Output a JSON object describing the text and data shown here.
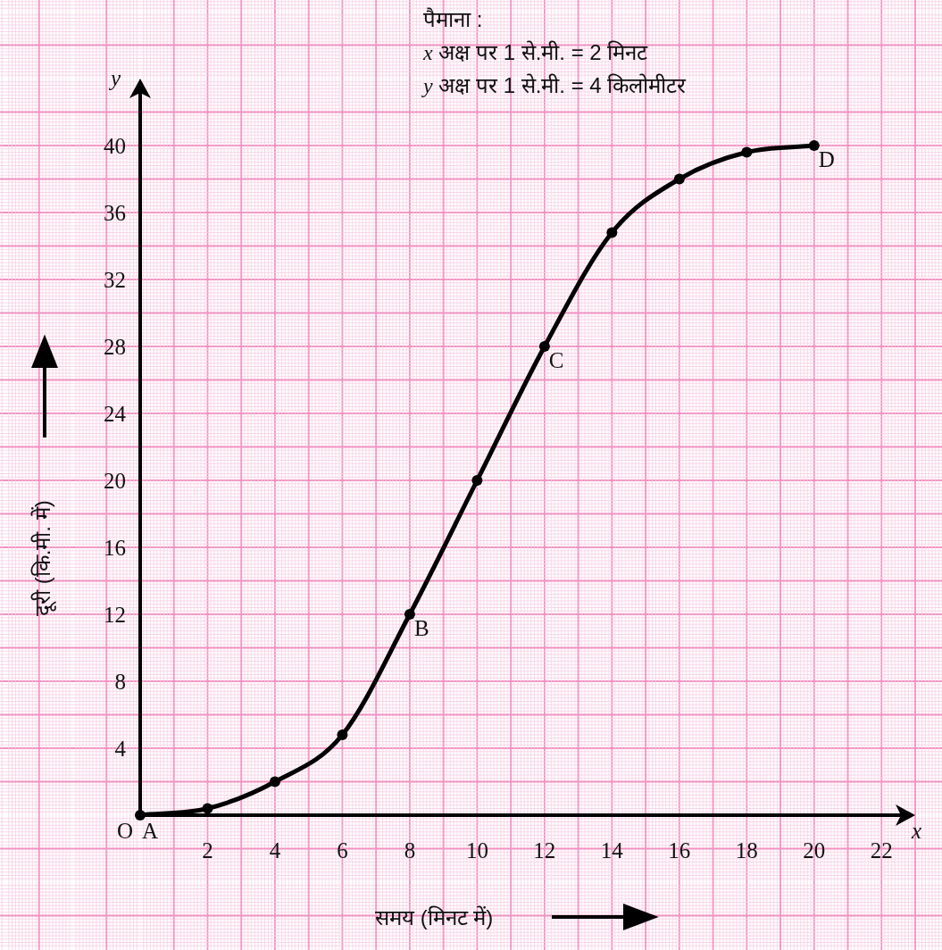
{
  "chart_data": {
    "type": "line",
    "xlabel": "समय (मिनट में)",
    "ylabel": "दूरी (कि.मी. में)",
    "x": [
      0,
      2,
      4,
      6,
      8,
      10,
      12,
      14,
      16,
      18,
      20
    ],
    "series": [
      {
        "color": "#000000",
        "values": [
          0,
          0.4,
          2,
          4.8,
          12,
          20,
          28,
          34.8,
          38,
          39.6,
          40
        ]
      }
    ],
    "xlim": [
      0,
      23
    ],
    "ylim": [
      0,
      44
    ],
    "xticks": [
      2,
      4,
      6,
      8,
      10,
      12,
      14,
      16,
      18,
      20,
      22
    ],
    "yticks": [
      4,
      8,
      12,
      16,
      20,
      24,
      28,
      32,
      36,
      40
    ],
    "grid": true,
    "marker": "circle",
    "line_style": "solid",
    "annotations": [
      "पैमाना :",
      "*x* अक्ष पर 1 से.मी. = 2 मिनट",
      "*y* अक्ष पर 1 से.मी. = 4 किलोमीटर",
      {
        "text": "O",
        "x": 0,
        "y": 0
      },
      {
        "text": "A",
        "x": 0,
        "y": 0
      },
      {
        "text": "B",
        "x": 8,
        "y": 12
      },
      {
        "text": "C",
        "x": 12,
        "y": 28
      },
      {
        "text": "D",
        "x": 20,
        "y": 40
      },
      "*x*",
      "*y*"
    ]
  }
}
